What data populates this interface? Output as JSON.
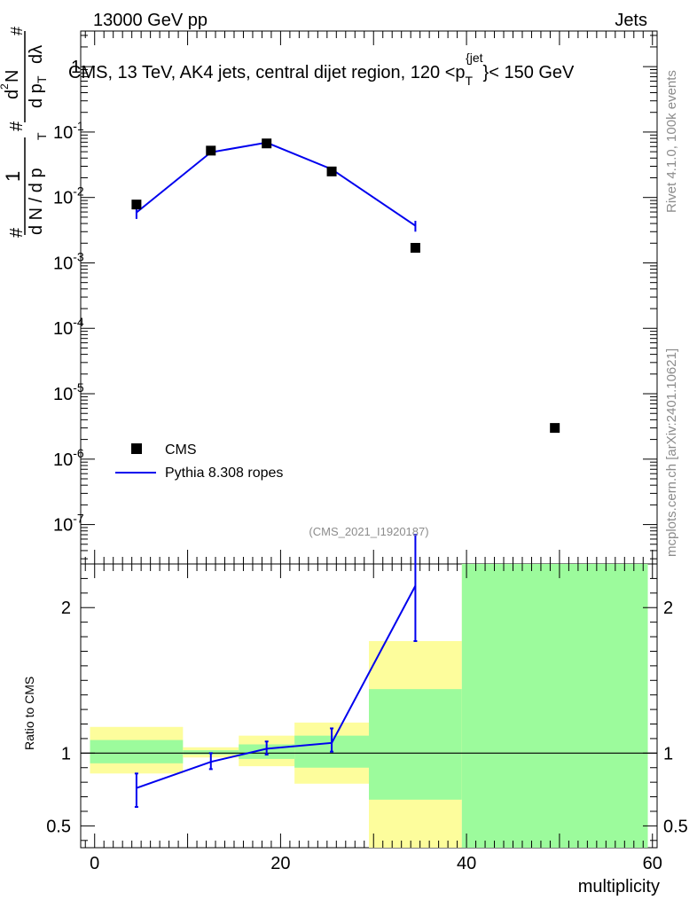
{
  "header": {
    "left": "13000 GeV pp",
    "right": "Jets"
  },
  "side_text": {
    "rivet": "Rivet 4.1.0,  100k events",
    "mcplots": "mcplots.cern.ch [arXiv:2401.10621]"
  },
  "colors": {
    "cms": "#000000",
    "pythia": "#0000ee",
    "band_inner": "#9cfb9c",
    "band_outer": "#fdfd9c"
  },
  "chart_data": [
    {
      "type": "scatter",
      "panel": "main",
      "title": "CMS, 13 TeV, AK4 jets, central dijet region, 120 <p_T^{jet}< 150 GeV",
      "title_parts": {
        "pre": "CMS, 13 TeV, AK4 jets, central dijet region, 120 <p",
        "sub": "T",
        "sup": "{jet",
        "post": "}< 150 GeV"
      },
      "ylabel": "1 / dN / dp_T  d²N / dp_T dλ",
      "ylabel_parts": {
        "num": "1",
        "den": "d N / d p",
        "num2": "d",
        "num2_sup": "2",
        "num2_rest": "N",
        "den2": "d p",
        "den2_tail": "dλ",
        "sub": "T",
        "hash": "#"
      },
      "yscale": "log",
      "ylim": [
        2.5e-08,
        3.5
      ],
      "y_tick_labels": [
        "1",
        "10",
        "10",
        "10",
        "10",
        "10",
        "10",
        "10"
      ],
      "y_tick_exponents": [
        "",
        "-1",
        "-2",
        "-3",
        "-4",
        "-5",
        "-6",
        "-7"
      ],
      "legend": {
        "position": "bottom-left",
        "entries": [
          "CMS",
          "Pythia 8.308 ropes"
        ]
      },
      "annotation": "(CMS_2021_I1920187)",
      "series": [
        {
          "name": "CMS",
          "marker": "square",
          "x": [
            4.5,
            12.5,
            18.5,
            25.5,
            34.5,
            49.5
          ],
          "y": [
            0.0078,
            0.052,
            0.067,
            0.025,
            0.0017,
            3e-06
          ]
        },
        {
          "name": "Pythia 8.308 ropes",
          "marker": "line",
          "x": [
            4.5,
            12.5,
            18.5,
            25.5,
            34.5
          ],
          "y": [
            0.0059,
            0.049,
            0.069,
            0.027,
            0.0037
          ],
          "err_lo": [
            0.0047,
            0.047,
            0.066,
            0.026,
            0.003
          ],
          "err_hi": [
            0.0068,
            0.051,
            0.072,
            0.028,
            0.0044
          ]
        }
      ]
    },
    {
      "type": "line",
      "panel": "ratio",
      "xlabel": "multiplicity",
      "ylabel": "Ratio to CMS",
      "xlim": [
        -1.5,
        60.5
      ],
      "ylim": [
        0.35,
        2.3
      ],
      "x_ticks": [
        0,
        20,
        40,
        60
      ],
      "y_ticks": [
        0.5,
        1,
        2
      ],
      "reference_line": 1,
      "bands": [
        {
          "x0": -0.5,
          "x1": 9.5,
          "outer": [
            0.86,
            1.18
          ],
          "inner": [
            0.93,
            1.09
          ]
        },
        {
          "x0": 9.5,
          "x1": 15.5,
          "outer": [
            0.97,
            1.04
          ],
          "inner": [
            0.99,
            1.02
          ]
        },
        {
          "x0": 15.5,
          "x1": 21.5,
          "outer": [
            0.91,
            1.12
          ],
          "inner": [
            0.96,
            1.06
          ]
        },
        {
          "x0": 21.5,
          "x1": 29.5,
          "outer": [
            0.79,
            1.21
          ],
          "inner": [
            0.9,
            1.12
          ]
        },
        {
          "x0": 29.5,
          "x1": 39.5,
          "outer": [
            0.35,
            1.77
          ],
          "inner": [
            0.68,
            1.44
          ]
        },
        {
          "x0": 39.5,
          "x1": 59.5,
          "outer": [
            0.35,
            2.3
          ],
          "inner": [
            0.35,
            2.3
          ]
        }
      ],
      "series": [
        {
          "name": "Pythia 8.308 ropes",
          "x": [
            4.5,
            12.5,
            18.5,
            25.5,
            34.5
          ],
          "y": [
            0.76,
            0.94,
            1.03,
            1.07,
            2.15
          ],
          "err_lo": [
            0.63,
            0.89,
            0.99,
            1.01,
            1.77
          ],
          "err_hi": [
            0.86,
            1.0,
            1.08,
            1.17,
            2.5
          ]
        }
      ]
    }
  ]
}
